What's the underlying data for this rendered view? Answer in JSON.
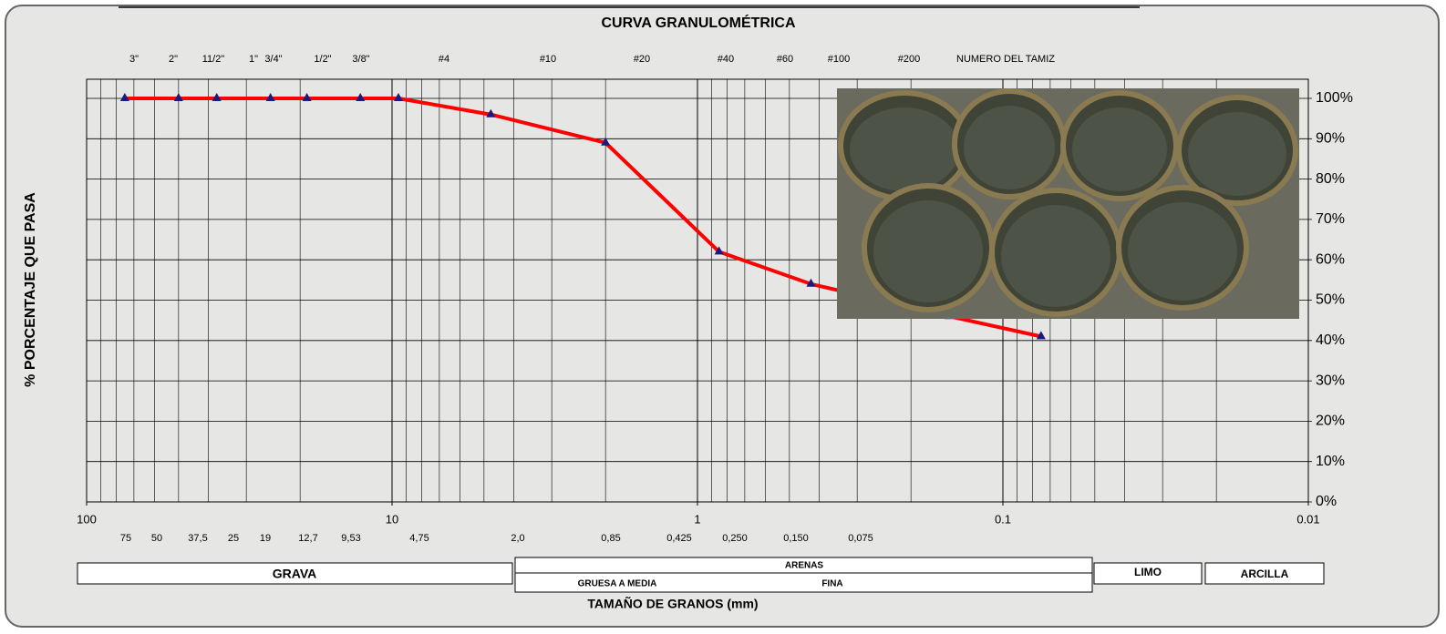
{
  "chart_data": {
    "type": "line",
    "title": "CURVA GRANULOMÉTRICA",
    "x_label": "TAMAÑO DE GRANOS (mm)",
    "y_label": "% PORCENTAJE QUE PASA",
    "sieve_header": "NUMERO DEL TAMIZ",
    "sieve_labels": [
      "3\"",
      "2\"",
      "11/2\"",
      "1\"",
      "3/4\"",
      "1/2\"",
      "3/8\"",
      "#4",
      "#10",
      "#20",
      "#40",
      "#60",
      "#100",
      "#200"
    ],
    "size_labels": [
      "75",
      "50",
      "37,5",
      "25",
      "19",
      "12,7",
      "9,53",
      "4,75",
      "2,0",
      "0,85",
      "0,425",
      "0,250",
      "0,150",
      "0,075"
    ],
    "x": [
      75,
      50,
      37.5,
      25,
      19,
      12.7,
      9.53,
      4.75,
      2.0,
      0.85,
      0.425,
      0.25,
      0.15,
      0.075
    ],
    "values": [
      100,
      100,
      100,
      100,
      100,
      100,
      100,
      96,
      89,
      62,
      54,
      50,
      46,
      41
    ],
    "color": "#ff0000",
    "marker_color": "#1a1a80",
    "x_log": true,
    "xlim": [
      100,
      0.01
    ],
    "xticks": [
      100,
      10,
      1,
      0.1,
      0.01
    ],
    "ylim": [
      0,
      100
    ],
    "yticks": [
      {
        "value": 0,
        "label": "0%"
      },
      {
        "value": 10,
        "label": "10%"
      },
      {
        "value": 20,
        "label": "20%"
      },
      {
        "value": 30,
        "label": "30%"
      },
      {
        "value": 40,
        "label": "40%"
      },
      {
        "value": 50,
        "label": "50%"
      },
      {
        "value": 60,
        "label": "60%"
      },
      {
        "value": 70,
        "label": "70%"
      },
      {
        "value": 80,
        "label": "80%"
      },
      {
        "value": 90,
        "label": "90%"
      },
      {
        "value": 100,
        "label": "100%"
      }
    ],
    "grid": true,
    "classes": {
      "grava": "GRAVA",
      "arenas": "ARENAS",
      "gruesa": "GRUESA A MEDIA",
      "fina": "FINA",
      "limo": "LIMO",
      "arcilla": "ARCILLA"
    }
  }
}
